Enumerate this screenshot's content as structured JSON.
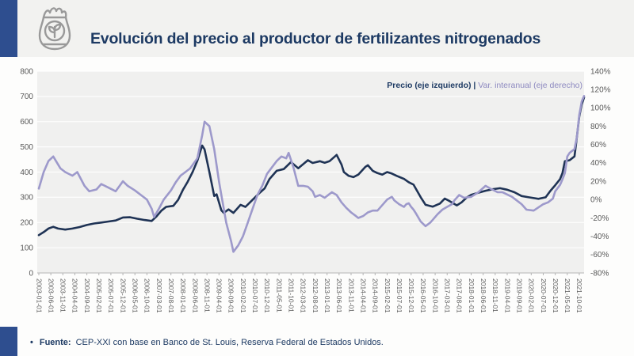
{
  "header": {
    "title": "Evolución del precio al productor de fertilizantes nitrogenados",
    "accent_color": "#2e4e8f",
    "icon": "fertilizer-bag-icon"
  },
  "legend": {
    "price_label": "Precio (eje izquierdo)",
    "separator": " | ",
    "var_label": "Var. interanual (eje derecho)",
    "price_color": "#1d3a63",
    "var_color": "#8d89c0"
  },
  "footer": {
    "bullet": "•",
    "source_label": "Fuente:",
    "source_text": "CEP-XXI con base en Banco de St. Louis, Reserva Federal de Estados Unidos."
  },
  "chart_data": {
    "type": "line",
    "title": "Evolución del precio al productor de fertilizantes nitrogenados",
    "xlabel": "",
    "ylabel_left": "Precio",
    "ylabel_right": "Var. interanual",
    "grid": "horizontal only",
    "legend_position": "top-right inside plot",
    "plot_bg": "#f0f0ef",
    "grid_color": "#ffffff",
    "axis_line_color": "#b3b3b3",
    "tick_text_color": "#595959",
    "left_axis": {
      "min": 0,
      "max": 800,
      "step": 100,
      "ticks": [
        "800",
        "700",
        "600",
        "500",
        "400",
        "300",
        "200",
        "100",
        "0"
      ]
    },
    "right_axis": {
      "min": -80,
      "max": 140,
      "step": 20,
      "ticks": [
        "140%",
        "120%",
        "100%",
        "80%",
        "60%",
        "40%",
        "20%",
        "0%",
        "-20%",
        "-40%",
        "-60%",
        "-80%"
      ]
    },
    "x_unit": "month index from 2003-01 (0) to 2021-12 (227); labeled tick every 5 months",
    "x_tick_labels": [
      "2003-01-01",
      "2003-06-01",
      "2003-11-01",
      "2004-04-01",
      "2004-09-01",
      "2005-02-01",
      "2005-07-01",
      "2005-12-01",
      "2006-05-01",
      "2006-10-01",
      "2007-03-01",
      "2007-08-01",
      "2008-01-01",
      "2008-06-01",
      "2008-11-01",
      "2009-04-01",
      "2009-09-01",
      "2010-02-01",
      "2010-07-01",
      "2010-12-01",
      "2011-05-01",
      "2011-10-01",
      "2012-03-01",
      "2012-08-01",
      "2013-01-01",
      "2013-06-01",
      "2013-11-01",
      "2014-04-01",
      "2014-09-01",
      "2015-02-01",
      "2015-07-01",
      "2015-12-01",
      "2016-05-01",
      "2016-10-01",
      "2017-03-01",
      "2017-08-01",
      "2018-01-01",
      "2018-06-01",
      "2018-11-01",
      "2019-04-01",
      "2019-09-01",
      "2020-02-01",
      "2020-07-01",
      "2020-12-01",
      "2021-05-01",
      "2021-10-01"
    ],
    "series": [
      {
        "name": "Precio (eje izquierdo)",
        "axis": "left",
        "color": "#1f3355",
        "points": [
          [
            0,
            150
          ],
          [
            2,
            162
          ],
          [
            4,
            176
          ],
          [
            6,
            183
          ],
          [
            8,
            176
          ],
          [
            11,
            172
          ],
          [
            14,
            176
          ],
          [
            17,
            182
          ],
          [
            20,
            190
          ],
          [
            23,
            196
          ],
          [
            26,
            200
          ],
          [
            29,
            204
          ],
          [
            32,
            208
          ],
          [
            35,
            220
          ],
          [
            38,
            221
          ],
          [
            41,
            215
          ],
          [
            44,
            210
          ],
          [
            47,
            206
          ],
          [
            49,
            224
          ],
          [
            51,
            247
          ],
          [
            53,
            262
          ],
          [
            56,
            266
          ],
          [
            58,
            290
          ],
          [
            60,
            330
          ],
          [
            62,
            362
          ],
          [
            64,
            400
          ],
          [
            66,
            445
          ],
          [
            68,
            505
          ],
          [
            69,
            490
          ],
          [
            71,
            400
          ],
          [
            73,
            305
          ],
          [
            74,
            312
          ],
          [
            76,
            248
          ],
          [
            77,
            238
          ],
          [
            79,
            252
          ],
          [
            81,
            238
          ],
          [
            84,
            270
          ],
          [
            86,
            262
          ],
          [
            89,
            290
          ],
          [
            92,
            318
          ],
          [
            94,
            335
          ],
          [
            96,
            372
          ],
          [
            99,
            405
          ],
          [
            102,
            412
          ],
          [
            105,
            440
          ],
          [
            108,
            415
          ],
          [
            112,
            447
          ],
          [
            114,
            436
          ],
          [
            117,
            443
          ],
          [
            119,
            437
          ],
          [
            121,
            443
          ],
          [
            124,
            468
          ],
          [
            126,
            430
          ],
          [
            127,
            400
          ],
          [
            129,
            385
          ],
          [
            131,
            380
          ],
          [
            133,
            390
          ],
          [
            136,
            421
          ],
          [
            137,
            427
          ],
          [
            139,
            405
          ],
          [
            141,
            396
          ],
          [
            143,
            390
          ],
          [
            145,
            400
          ],
          [
            147,
            394
          ],
          [
            149,
            385
          ],
          [
            152,
            373
          ],
          [
            154,
            360
          ],
          [
            156,
            350
          ],
          [
            159,
            300
          ],
          [
            161,
            270
          ],
          [
            164,
            263
          ],
          [
            167,
            275
          ],
          [
            169,
            295
          ],
          [
            171,
            285
          ],
          [
            174,
            268
          ],
          [
            176,
            280
          ],
          [
            178,
            298
          ],
          [
            180,
            310
          ],
          [
            183,
            318
          ],
          [
            186,
            326
          ],
          [
            189,
            332
          ],
          [
            192,
            336
          ],
          [
            195,
            330
          ],
          [
            198,
            320
          ],
          [
            201,
            305
          ],
          [
            204,
            300
          ],
          [
            208,
            294
          ],
          [
            211,
            300
          ],
          [
            213,
            326
          ],
          [
            215,
            348
          ],
          [
            217,
            372
          ],
          [
            218,
            396
          ],
          [
            219,
            443
          ],
          [
            221,
            447
          ],
          [
            223,
            462
          ],
          [
            224,
            538
          ],
          [
            225,
            620
          ],
          [
            226,
            668
          ],
          [
            227,
            696
          ]
        ]
      },
      {
        "name": "Var. interanual (eje derecho)",
        "axis": "right",
        "color": "#9d99cb",
        "points": [
          [
            0,
            12
          ],
          [
            2,
            30
          ],
          [
            4,
            42
          ],
          [
            6,
            47
          ],
          [
            9,
            34
          ],
          [
            11,
            30
          ],
          [
            14,
            26
          ],
          [
            16,
            30
          ],
          [
            19,
            15
          ],
          [
            21,
            9
          ],
          [
            24,
            11
          ],
          [
            26,
            17
          ],
          [
            29,
            13
          ],
          [
            32,
            9
          ],
          [
            35,
            20
          ],
          [
            37,
            15
          ],
          [
            40,
            10
          ],
          [
            43,
            4
          ],
          [
            45,
            0
          ],
          [
            47,
            -10
          ],
          [
            48,
            -19
          ],
          [
            50,
            -10
          ],
          [
            52,
            0
          ],
          [
            55,
            10
          ],
          [
            57,
            19
          ],
          [
            59,
            26
          ],
          [
            61,
            30
          ],
          [
            63,
            34
          ],
          [
            66,
            45
          ],
          [
            68,
            70
          ],
          [
            69,
            85
          ],
          [
            71,
            80
          ],
          [
            73,
            55
          ],
          [
            75,
            20
          ],
          [
            76,
            5
          ],
          [
            77,
            -10
          ],
          [
            78,
            -25
          ],
          [
            80,
            -45
          ],
          [
            81,
            -57
          ],
          [
            83,
            -50
          ],
          [
            85,
            -40
          ],
          [
            87,
            -25
          ],
          [
            89,
            -10
          ],
          [
            91,
            5
          ],
          [
            93,
            15
          ],
          [
            95,
            28
          ],
          [
            97,
            35
          ],
          [
            99,
            42
          ],
          [
            101,
            47
          ],
          [
            103,
            45
          ],
          [
            104,
            51
          ],
          [
            106,
            35
          ],
          [
            108,
            15
          ],
          [
            110,
            15
          ],
          [
            112,
            14
          ],
          [
            114,
            9
          ],
          [
            115,
            3
          ],
          [
            117,
            5
          ],
          [
            119,
            2
          ],
          [
            121,
            6
          ],
          [
            122,
            8
          ],
          [
            124,
            5
          ],
          [
            126,
            -3
          ],
          [
            128,
            -9
          ],
          [
            130,
            -14
          ],
          [
            132,
            -18
          ],
          [
            133,
            -20
          ],
          [
            135,
            -18
          ],
          [
            137,
            -14
          ],
          [
            139,
            -12
          ],
          [
            141,
            -12
          ],
          [
            142,
            -9
          ],
          [
            144,
            -3
          ],
          [
            145,
            0
          ],
          [
            147,
            3
          ],
          [
            148,
            -1
          ],
          [
            150,
            -5
          ],
          [
            152,
            -8
          ],
          [
            153,
            -5
          ],
          [
            154,
            -4
          ],
          [
            155,
            -8
          ],
          [
            156,
            -11
          ],
          [
            157,
            -15
          ],
          [
            159,
            -24
          ],
          [
            161,
            -29
          ],
          [
            163,
            -25
          ],
          [
            164,
            -22
          ],
          [
            166,
            -16
          ],
          [
            168,
            -11
          ],
          [
            170,
            -8
          ],
          [
            172,
            -5
          ],
          [
            173,
            -1
          ],
          [
            175,
            5
          ],
          [
            177,
            2
          ],
          [
            180,
            3
          ],
          [
            183,
            8
          ],
          [
            186,
            15
          ],
          [
            188,
            12
          ],
          [
            191,
            8
          ],
          [
            193,
            8
          ],
          [
            197,
            3
          ],
          [
            201,
            -5
          ],
          [
            203,
            -11
          ],
          [
            206,
            -12
          ],
          [
            210,
            -5
          ],
          [
            212,
            -3
          ],
          [
            214,
            1
          ],
          [
            215,
            9
          ],
          [
            217,
            16
          ],
          [
            218,
            22
          ],
          [
            219,
            29
          ],
          [
            220,
            47
          ],
          [
            221,
            51
          ],
          [
            222,
            53
          ],
          [
            223,
            55
          ],
          [
            224,
            68
          ],
          [
            225,
            92
          ],
          [
            226,
            107
          ],
          [
            227,
            113
          ]
        ]
      }
    ]
  }
}
